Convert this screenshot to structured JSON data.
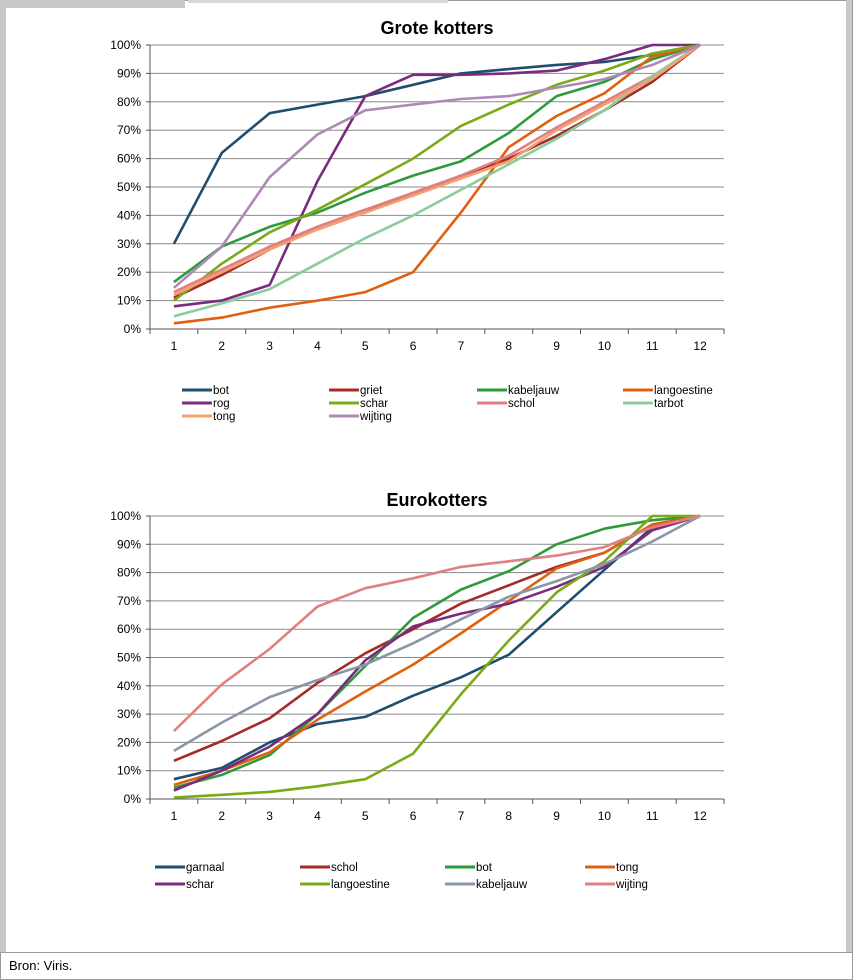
{
  "source": "Bron: Viris.",
  "chart_data": [
    {
      "type": "line",
      "title": "Grote kotters",
      "x": [
        1,
        2,
        3,
        4,
        5,
        6,
        7,
        8,
        9,
        10,
        11,
        12
      ],
      "ylim": [
        0,
        100
      ],
      "y_ticks": [
        "0%",
        "10%",
        "20%",
        "30%",
        "40%",
        "50%",
        "60%",
        "70%",
        "80%",
        "90%",
        "100%"
      ],
      "grid": true,
      "legend_position": "bottom",
      "series": [
        {
          "name": "bot",
          "color": "#1f4e6e",
          "values": [
            30,
            62,
            76,
            79,
            82,
            86,
            90,
            91.5,
            93,
            94,
            96.5,
            100
          ]
        },
        {
          "name": "griet",
          "color": "#a52a2a",
          "values": [
            11,
            19,
            28,
            36,
            42,
            47,
            54,
            60,
            68,
            77,
            87,
            100
          ]
        },
        {
          "name": "kabeljauw",
          "color": "#2e9a3a",
          "values": [
            16.5,
            29,
            36,
            41,
            48,
            54,
            59,
            69,
            82,
            87,
            95,
            100
          ]
        },
        {
          "name": "langoestine",
          "color": "#e06010",
          "values": [
            2,
            4,
            7.5,
            10,
            13,
            20,
            41,
            64,
            75,
            83,
            96,
            100
          ]
        },
        {
          "name": "rog",
          "color": "#7b2b7f",
          "values": [
            8,
            10,
            15.5,
            52,
            82,
            89.5,
            89.5,
            90,
            91,
            95,
            100,
            100
          ]
        },
        {
          "name": "schar",
          "color": "#7aaa18",
          "values": [
            10,
            23,
            34,
            42,
            51,
            60,
            71.5,
            79,
            86,
            91,
            97,
            100
          ]
        },
        {
          "name": "schol",
          "color": "#e08080",
          "values": [
            13,
            21,
            29,
            36,
            42,
            48,
            54,
            61,
            71,
            80,
            89,
            100
          ]
        },
        {
          "name": "tarbot",
          "color": "#8ccc9c",
          "values": [
            4.5,
            9,
            14,
            23,
            32,
            40,
            49,
            58,
            67,
            77,
            89,
            100
          ]
        },
        {
          "name": "tong",
          "color": "#f4a070",
          "values": [
            12,
            20,
            28,
            35,
            41,
            47,
            53,
            59,
            70,
            79,
            88,
            100
          ]
        },
        {
          "name": "wijting",
          "color": "#b088b8",
          "values": [
            14.5,
            29,
            53.5,
            68.5,
            77,
            79,
            81,
            82,
            85,
            88,
            93,
            100
          ]
        }
      ]
    },
    {
      "type": "line",
      "title": "Eurokotters",
      "x": [
        1,
        2,
        3,
        4,
        5,
        6,
        7,
        8,
        9,
        10,
        11,
        12
      ],
      "ylim": [
        0,
        100
      ],
      "y_ticks": [
        "0%",
        "10%",
        "20%",
        "30%",
        "40%",
        "50%",
        "60%",
        "70%",
        "80%",
        "90%",
        "100%"
      ],
      "grid": true,
      "legend_position": "bottom",
      "series": [
        {
          "name": "garnaal",
          "color": "#1f4e6e",
          "values": [
            7,
            11,
            20,
            26.5,
            29,
            36.5,
            43,
            51,
            66,
            81,
            96,
            100
          ]
        },
        {
          "name": "schol",
          "color": "#a52a2a",
          "values": [
            13.5,
            20.5,
            28.5,
            41,
            51.5,
            60,
            69,
            75.5,
            82,
            87,
            97,
            100
          ]
        },
        {
          "name": "bot",
          "color": "#2e9a3a",
          "values": [
            4,
            8.5,
            15.5,
            30,
            47,
            64,
            74,
            80.5,
            90,
            95.5,
            98.5,
            100
          ]
        },
        {
          "name": "tong",
          "color": "#e06010",
          "values": [
            5,
            10,
            16.5,
            28,
            38,
            47.5,
            58.5,
            70,
            81.5,
            87,
            97,
            100
          ]
        },
        {
          "name": "schar",
          "color": "#7b2b7f",
          "values": [
            3,
            10,
            18.5,
            30,
            49,
            61,
            65.5,
            69,
            75,
            82,
            95,
            100
          ]
        },
        {
          "name": "langoestine",
          "color": "#7aaa18",
          "values": [
            0.5,
            1.5,
            2.5,
            4.5,
            7,
            16,
            37,
            56,
            73,
            84,
            100,
            100
          ]
        },
        {
          "name": "kabeljauw",
          "color": "#8a96a8",
          "values": [
            17,
            27,
            36,
            42,
            47.5,
            55,
            63.5,
            71.5,
            77,
            83,
            91,
            100
          ]
        },
        {
          "name": "wijting",
          "color": "#e08080",
          "values": [
            24,
            40.5,
            53,
            68,
            74.5,
            78,
            82,
            84,
            86,
            89,
            96,
            100
          ]
        }
      ]
    }
  ]
}
